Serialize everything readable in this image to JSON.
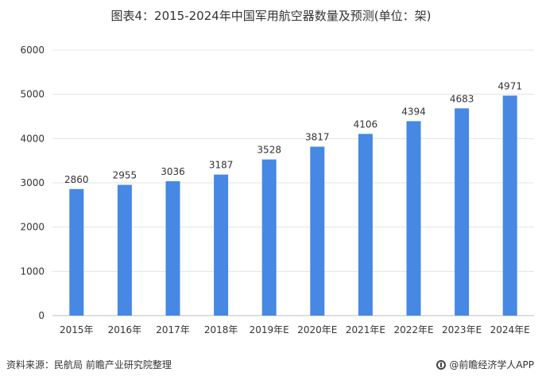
{
  "title": "图表4：2015-2024年中国军用航空器数量及预测(单位：架)",
  "source": "资料来源：民航局 前瞻产业研究院整理",
  "brand": "@前瞻经济学人APP",
  "chart_data": {
    "type": "bar",
    "categories": [
      "2015年",
      "2016年",
      "2017年",
      "2018年",
      "2019年E",
      "2020年E",
      "2021年E",
      "2022年E",
      "2023年E",
      "2024年E"
    ],
    "values": [
      2860,
      2955,
      3036,
      3187,
      3528,
      3817,
      4106,
      4394,
      4683,
      4971
    ],
    "ylim": [
      0,
      6000
    ],
    "yticks": [
      0,
      1000,
      2000,
      3000,
      4000,
      5000,
      6000
    ],
    "grid": true,
    "bar_color": "#4688e3"
  }
}
